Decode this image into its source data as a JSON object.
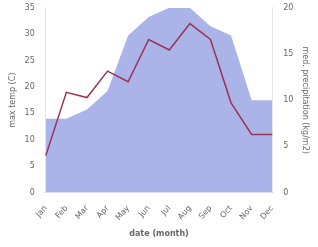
{
  "chart_data": {
    "type": "line",
    "categories": [
      "Jan",
      "Feb",
      "Mar",
      "Apr",
      "May",
      "Jun",
      "Jul",
      "Aug",
      "Sep",
      "Oct",
      "Nov",
      "Dec"
    ],
    "series": [
      {
        "type": "area",
        "color": "#aab4e8",
        "axis": "y2",
        "values": [
          8,
          8,
          9,
          11,
          17,
          19,
          20,
          20,
          18,
          17,
          10,
          10
        ]
      },
      {
        "type": "line",
        "color": "#993355",
        "values": [
          7,
          19,
          18,
          23,
          21,
          29,
          27,
          32,
          29,
          17,
          11,
          11
        ]
      }
    ],
    "xlabel": "date (month)",
    "ylabel": "max temp (C)",
    "y2label": "med. precipitation (kg/m2)",
    "ylim": [
      0,
      35
    ],
    "yticks": [
      0,
      5,
      10,
      15,
      20,
      25,
      30,
      35
    ],
    "y2lim": [
      0,
      20
    ],
    "y2ticks": [
      0,
      5,
      10,
      15,
      20
    ],
    "grid": false
  }
}
